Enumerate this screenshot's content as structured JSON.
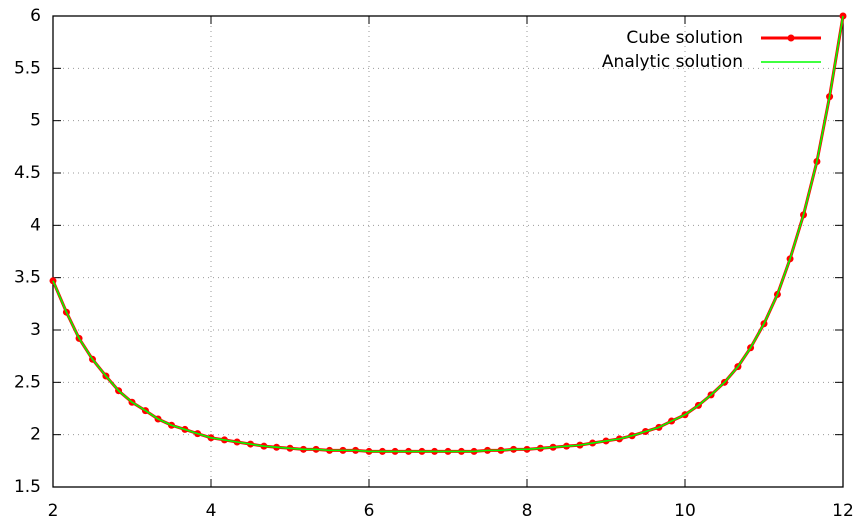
{
  "chart_data": {
    "type": "line",
    "x": [
      2,
      2.17,
      2.33,
      2.5,
      2.67,
      2.83,
      3,
      3.17,
      3.33,
      3.5,
      3.67,
      3.83,
      4,
      4.17,
      4.33,
      4.5,
      4.67,
      4.83,
      5,
      5.17,
      5.33,
      5.5,
      5.67,
      5.83,
      6,
      6.17,
      6.33,
      6.5,
      6.67,
      6.83,
      7,
      7.17,
      7.33,
      7.5,
      7.67,
      7.83,
      8,
      8.17,
      8.33,
      8.5,
      8.67,
      8.83,
      9,
      9.17,
      9.33,
      9.5,
      9.67,
      9.83,
      10,
      10.17,
      10.33,
      10.5,
      10.67,
      10.83,
      11,
      11.17,
      11.33,
      11.5,
      11.67,
      11.83,
      12
    ],
    "series": [
      {
        "name": "Cube solution",
        "color": "#ff0000",
        "marker": "circle",
        "values": [
          3.47,
          3.17,
          2.92,
          2.72,
          2.56,
          2.42,
          2.31,
          2.23,
          2.15,
          2.09,
          2.05,
          2.01,
          1.97,
          1.95,
          1.93,
          1.91,
          1.89,
          1.88,
          1.87,
          1.86,
          1.86,
          1.85,
          1.85,
          1.85,
          1.84,
          1.84,
          1.84,
          1.84,
          1.84,
          1.84,
          1.84,
          1.84,
          1.84,
          1.85,
          1.85,
          1.86,
          1.86,
          1.87,
          1.88,
          1.89,
          1.9,
          1.92,
          1.94,
          1.96,
          1.99,
          2.03,
          2.07,
          2.13,
          2.19,
          2.28,
          2.38,
          2.5,
          2.65,
          2.83,
          3.06,
          3.34,
          3.68,
          4.1,
          4.61,
          5.23,
          6
        ]
      },
      {
        "name": "Analytic solution",
        "color": "#00ff00",
        "values": [
          3.47,
          3.17,
          2.92,
          2.72,
          2.56,
          2.42,
          2.31,
          2.23,
          2.15,
          2.09,
          2.05,
          2.01,
          1.97,
          1.95,
          1.93,
          1.91,
          1.89,
          1.88,
          1.87,
          1.86,
          1.86,
          1.85,
          1.85,
          1.85,
          1.84,
          1.84,
          1.84,
          1.84,
          1.84,
          1.84,
          1.84,
          1.84,
          1.84,
          1.85,
          1.85,
          1.86,
          1.86,
          1.87,
          1.88,
          1.89,
          1.9,
          1.92,
          1.94,
          1.96,
          1.99,
          2.03,
          2.07,
          2.13,
          2.19,
          2.28,
          2.38,
          2.5,
          2.65,
          2.83,
          3.06,
          3.34,
          3.68,
          4.1,
          4.61,
          5.23,
          6
        ]
      }
    ],
    "xlim": [
      2,
      12
    ],
    "xticks": [
      2,
      4,
      6,
      8,
      10,
      12
    ],
    "ylim": [
      1.5,
      6
    ],
    "yticks": [
      1.5,
      2,
      2.5,
      3,
      3.5,
      4,
      4.5,
      5,
      5.5,
      6
    ],
    "grid": true,
    "legend": "upper right"
  }
}
